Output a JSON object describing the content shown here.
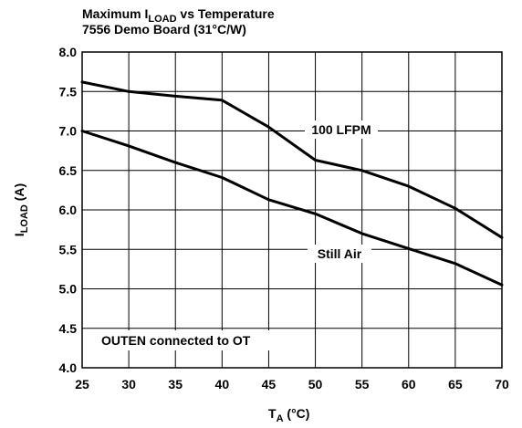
{
  "chart_data": {
    "type": "line",
    "title_line1_main": "Maximum I",
    "title_line1_sub": "LOAD",
    "title_line1_rest": " vs Temperature",
    "title_line2": "7556 Demo Board (31°C/W)",
    "xlabel_main": "T",
    "xlabel_sub": "A",
    "xlabel_rest": " (°C)",
    "ylabel_main": "I",
    "ylabel_sub": "LOAD",
    "ylabel_rest": " (A)",
    "xlim": [
      25,
      70
    ],
    "ylim": [
      4.0,
      8.0
    ],
    "x_ticks": [
      "25",
      "30",
      "35",
      "40",
      "45",
      "50",
      "55",
      "60",
      "65",
      "70"
    ],
    "y_ticks": [
      "4.0",
      "4.5",
      "5.0",
      "5.5",
      "6.0",
      "6.5",
      "7.0",
      "7.5",
      "8.0"
    ],
    "grid": true,
    "series": [
      {
        "name": "100 LFPM",
        "x": [
          25,
          30,
          35,
          40,
          45,
          50,
          55,
          60,
          65,
          70
        ],
        "y": [
          7.62,
          7.5,
          7.44,
          7.39,
          7.05,
          6.63,
          6.5,
          6.3,
          6.02,
          5.65
        ]
      },
      {
        "name": "Still Air",
        "x": [
          25,
          30,
          35,
          40,
          45,
          50,
          55,
          60,
          65,
          70
        ],
        "y": [
          7.0,
          6.81,
          6.6,
          6.41,
          6.13,
          5.95,
          5.7,
          5.51,
          5.32,
          5.05
        ]
      }
    ],
    "annotations": [
      {
        "id": "note",
        "text": "OUTEN connected to OT"
      }
    ]
  }
}
